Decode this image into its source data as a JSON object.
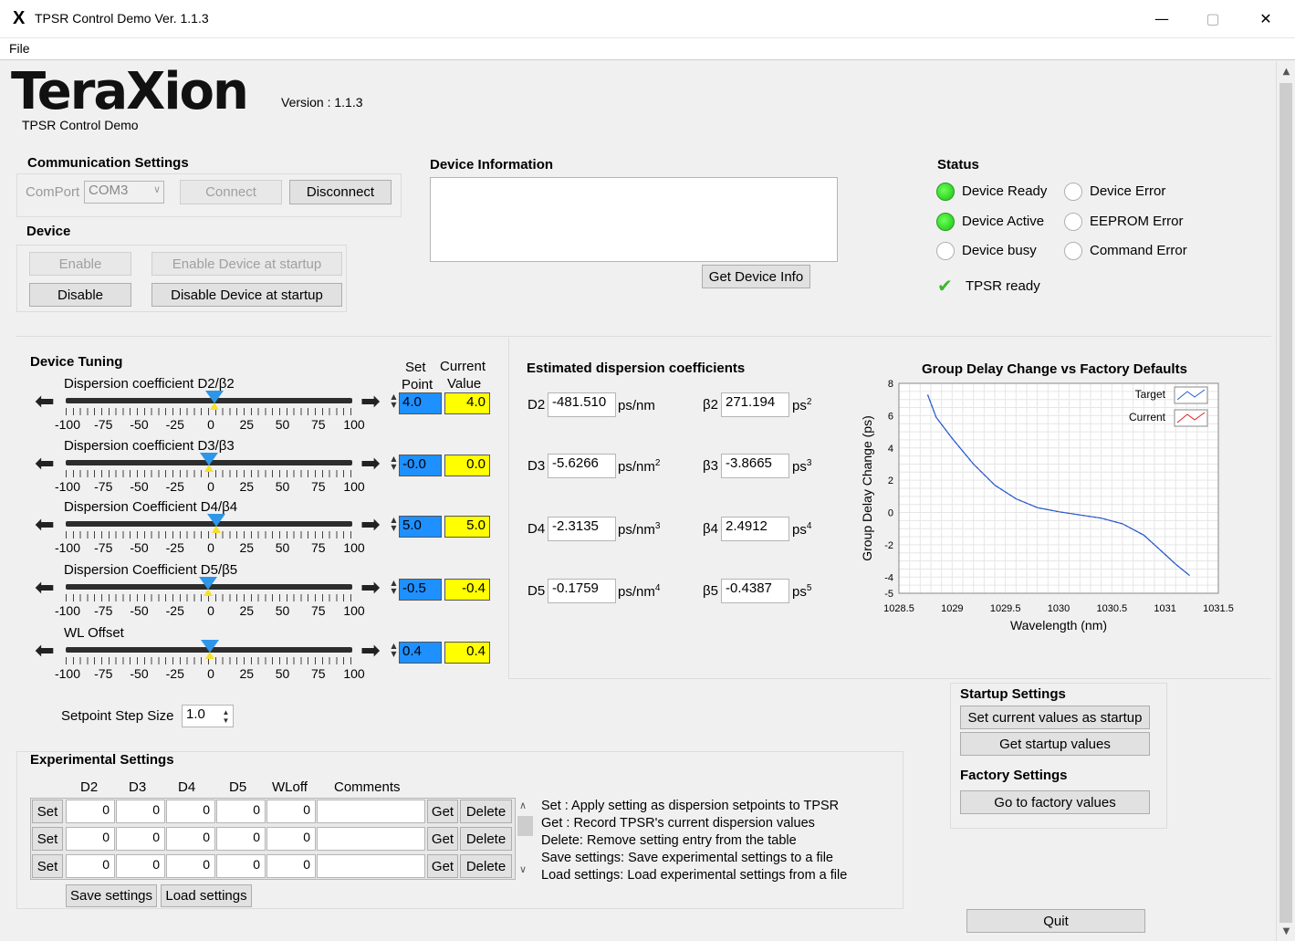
{
  "window": {
    "title": "TPSR Control Demo Ver. 1.1.3",
    "app_icon": "X"
  },
  "menu": {
    "file": "File"
  },
  "header": {
    "logo": "TeraXion",
    "subtitle": "TPSR Control Demo",
    "version_label": "Version :",
    "version_value": "1.1.3"
  },
  "communication": {
    "title": "Communication Settings",
    "comport_label": "ComPort",
    "comport_value": "COM3",
    "connect_label": "Connect",
    "disconnect_label": "Disconnect"
  },
  "device": {
    "title": "Device",
    "enable_label": "Enable",
    "enable_startup_label": "Enable Device at startup",
    "disable_label": "Disable",
    "disable_startup_label": "Disable Device at startup"
  },
  "device_info": {
    "title": "Device Information",
    "text": "",
    "get_info_label": "Get Device Info"
  },
  "status": {
    "title": "Status",
    "device_ready": "Device Ready",
    "device_error": "Device Error",
    "device_active": "Device Active",
    "eeprom_error": "EEPROM Error",
    "device_busy": "Device busy",
    "command_error": "Command Error",
    "tpsr_ready": "TPSR ready",
    "colors": {
      "led_on": "#17c20b",
      "led_off": "#ffffff"
    }
  },
  "tuning": {
    "title": "Device Tuning",
    "set_point_header_1": "Set",
    "set_point_header_2": "Point",
    "current_header_1": "Current",
    "current_header_2": "Value",
    "scale": [
      "-100",
      "-75",
      "-50",
      "-25",
      "0",
      "25",
      "50",
      "75",
      "100"
    ],
    "sliders": [
      {
        "label": "Dispersion coefficient D2/β2",
        "set_point": "4.0",
        "current": "4.0",
        "value": 4.0
      },
      {
        "label": "Dispersion coefficient D3/β3",
        "set_point": "-0.0",
        "current": "0.0",
        "value": 0.0
      },
      {
        "label": "Dispersion Coefficient D4/β4",
        "set_point": "5.0",
        "current": "5.0",
        "value": 5.0
      },
      {
        "label": "Dispersion Coefficient D5/β5",
        "set_point": "-0.5",
        "current": "-0.4",
        "value": -0.5
      },
      {
        "label": "WL Offset",
        "set_point": "0.4",
        "current": "0.4",
        "value": 0.4
      }
    ],
    "step_label": "Setpoint Step Size",
    "step_value": "1.0",
    "colors": {
      "set_point": "#1e90ff",
      "current": "#ffff00",
      "thumb": "#2e96e8"
    }
  },
  "estimated": {
    "title": "Estimated dispersion coefficients",
    "rows": [
      {
        "d_label": "D2",
        "d_value": "-481.510",
        "d_unit": "ps/nm",
        "d_sup": "",
        "b_label": "β2",
        "b_value": "271.194",
        "b_unit": "ps",
        "b_sup": "2"
      },
      {
        "d_label": "D3",
        "d_value": "-5.6266",
        "d_unit": "ps/nm",
        "d_sup": "2",
        "b_label": "β3",
        "b_value": "-3.8665",
        "b_unit": "ps",
        "b_sup": "3"
      },
      {
        "d_label": "D4",
        "d_value": "-2.3135",
        "d_unit": "ps/nm",
        "d_sup": "3",
        "b_label": "β4",
        "b_value": "2.4912",
        "b_unit": "ps",
        "b_sup": "4"
      },
      {
        "d_label": "D5",
        "d_value": "-0.1759",
        "d_unit": "ps/nm",
        "d_sup": "4",
        "b_label": "β5",
        "b_value": "-0.4387",
        "b_unit": "ps",
        "b_sup": "5"
      }
    ]
  },
  "chart_data": {
    "type": "line",
    "title": "Group Delay Change vs Factory Defaults",
    "xlabel": "Wavelength (nm)",
    "ylabel": "Group Delay Change (ps)",
    "xlim": [
      1028.5,
      1031.5
    ],
    "ylim": [
      -5,
      8
    ],
    "x_ticks": [
      "1028.5",
      "1029",
      "1029.5",
      "1030",
      "1030.5",
      "1031",
      "1031.5"
    ],
    "y_ticks": [
      "8",
      "6",
      "4",
      "2",
      "0",
      "-2",
      "-4",
      "-5"
    ],
    "grid": true,
    "legend_position": "top-right",
    "series": [
      {
        "name": "Target",
        "color": "#1f5fd6",
        "x": [
          1028.77,
          1028.85,
          1029.0,
          1029.2,
          1029.4,
          1029.6,
          1029.8,
          1030.0,
          1030.2,
          1030.4,
          1030.6,
          1030.8,
          1031.0,
          1031.1,
          1031.23
        ],
        "y": [
          7.3,
          5.9,
          4.6,
          3.0,
          1.7,
          0.85,
          0.3,
          0.05,
          -0.15,
          -0.35,
          -0.7,
          -1.4,
          -2.6,
          -3.2,
          -3.9
        ]
      },
      {
        "name": "Current",
        "color": "#e02020",
        "x": [
          1028.77,
          1028.85,
          1029.0,
          1029.2,
          1029.4,
          1029.6,
          1029.8,
          1030.0,
          1030.2,
          1030.4,
          1030.6,
          1030.8,
          1031.0,
          1031.1,
          1031.23
        ],
        "y": [
          7.3,
          5.9,
          4.6,
          3.0,
          1.7,
          0.85,
          0.3,
          0.05,
          -0.15,
          -0.35,
          -0.7,
          -1.4,
          -2.6,
          -3.2,
          -3.9
        ]
      }
    ]
  },
  "startup": {
    "title": "Startup Settings",
    "set_current_label": "Set current values as startup",
    "get_startup_label": "Get startup values",
    "factory_title": "Factory Settings",
    "factory_label": "Go to factory values"
  },
  "experimental": {
    "title": "Experimental Settings",
    "headers": [
      "D2",
      "D3",
      "D4",
      "D5",
      "WLoff",
      "Comments"
    ],
    "set_label": "Set",
    "get_label": "Get",
    "delete_label": "Delete",
    "rows": [
      {
        "d2": "0",
        "d3": "0",
        "d4": "0",
        "d5": "0",
        "wloff": "0",
        "comment": ""
      },
      {
        "d2": "0",
        "d3": "0",
        "d4": "0",
        "d5": "0",
        "wloff": "0",
        "comment": ""
      },
      {
        "d2": "0",
        "d3": "0",
        "d4": "0",
        "d5": "0",
        "wloff": "0",
        "comment": ""
      }
    ],
    "save_label": "Save settings",
    "load_label": "Load settings",
    "help": [
      "Set : Apply setting as dispersion setpoints to TPSR",
      "Get : Record TPSR's current dispersion values",
      "Delete: Remove setting entry from the table",
      "Save settings: Save experimental settings to a file",
      "Load settings: Load experimental settings from a file"
    ]
  },
  "quit_label": "Quit"
}
